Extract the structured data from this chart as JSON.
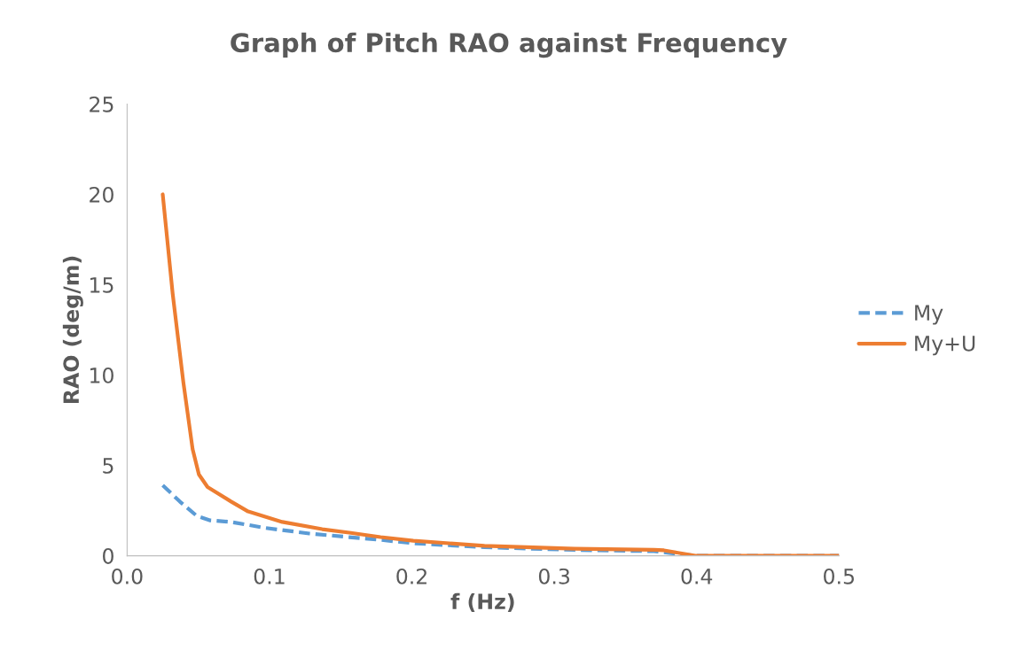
{
  "chart_data": {
    "type": "line",
    "title": "Graph of Pitch RAO against Frequency",
    "xlabel": "f (Hz)",
    "ylabel": "RAO (deg/m)",
    "xlim": [
      0,
      0.5
    ],
    "xticks": [
      {
        "value": 0,
        "label": "0.0"
      },
      0.1,
      0.2,
      0.3,
      0.4,
      0.5
    ],
    "ylim": [
      0,
      25
    ],
    "yticks": [
      0,
      5,
      10,
      15,
      20,
      25
    ],
    "grid": false,
    "legend": "right",
    "marker": "none",
    "series": [
      {
        "name": "My",
        "color": "#5b9bd5",
        "line_style": "dashed",
        "x": [
          0.025,
          0.037,
          0.049,
          0.058,
          0.073,
          0.097,
          0.128,
          0.156,
          0.178,
          0.201,
          0.251,
          0.314,
          0.37,
          0.399,
          0.5
        ],
        "values": [
          3.9,
          3.0,
          2.2,
          1.96,
          1.87,
          1.54,
          1.23,
          1.03,
          0.88,
          0.69,
          0.47,
          0.32,
          0.25,
          0,
          0
        ]
      },
      {
        "name": "My+U",
        "color": "#ed7d31",
        "line_style": "solid",
        "x": [
          0.025,
          0.032,
          0.0395,
          0.046,
          0.0504,
          0.0565,
          0.073,
          0.085,
          0.109,
          0.137,
          0.156,
          0.178,
          0.201,
          0.251,
          0.314,
          0.37,
          0.377,
          0.399,
          0.5
        ],
        "values": [
          20,
          14.5,
          9.6,
          5.9,
          4.5,
          3.8,
          3.0,
          2.45,
          1.87,
          1.47,
          1.28,
          1.03,
          0.83,
          0.55,
          0.39,
          0.33,
          0.3,
          0,
          0
        ]
      }
    ]
  }
}
